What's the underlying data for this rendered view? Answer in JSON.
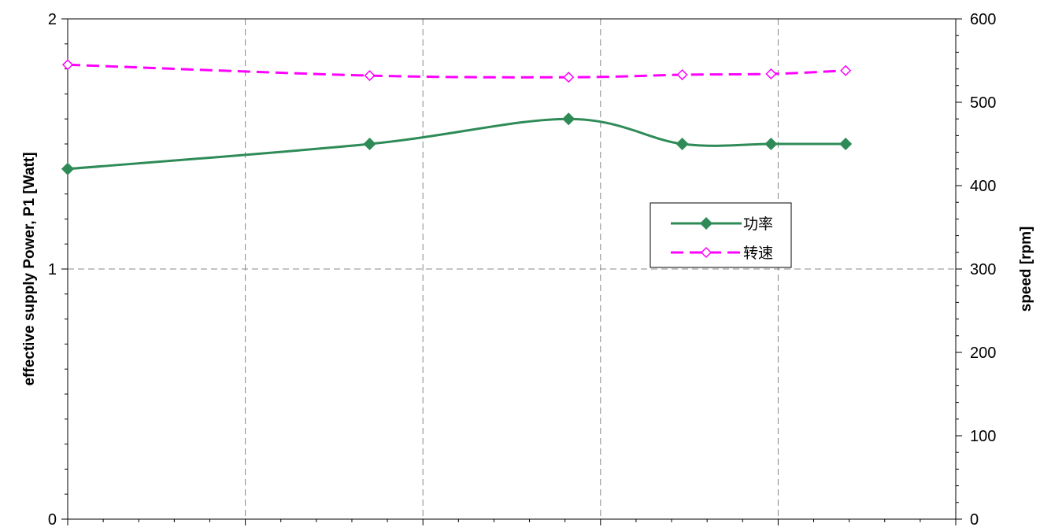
{
  "chart_data": {
    "type": "line",
    "title": "",
    "xlabel": "",
    "ylabel": "effective supply Power, P1 [Watt]",
    "y2label": "speed [rpm]",
    "xlim": [
      0,
      25
    ],
    "ylim": [
      0,
      2
    ],
    "y2lim": [
      0,
      600
    ],
    "y_ticks": [
      0,
      1,
      2
    ],
    "y2_ticks": [
      0,
      100,
      200,
      300,
      400,
      500,
      600
    ],
    "grid": true,
    "legend_position": "center-right",
    "series": [
      {
        "name": "功率",
        "axis": "left",
        "color": "#2e8b57",
        "marker": "diamond-filled",
        "line_style": "solid",
        "x": [
          0,
          8.5,
          14.1,
          17.3,
          19.8,
          21.9
        ],
        "values": [
          1.4,
          1.5,
          1.6,
          1.5,
          1.5,
          1.5
        ]
      },
      {
        "name": "转速",
        "axis": "right",
        "color": "#ff00ff",
        "marker": "diamond-open",
        "line_style": "dashed",
        "x": [
          0,
          8.5,
          14.1,
          17.3,
          19.8,
          21.9
        ],
        "values": [
          545,
          532,
          530,
          533,
          534,
          538
        ]
      }
    ]
  }
}
